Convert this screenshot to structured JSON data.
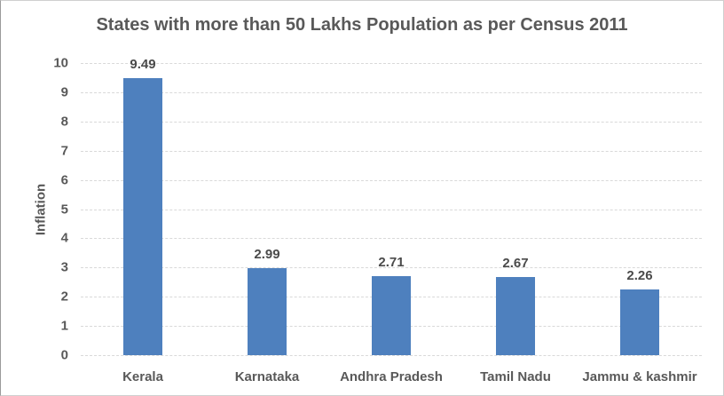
{
  "chart_data": {
    "type": "bar",
    "title": "States with more than 50 Lakhs Population as per Census 2011",
    "xlabel": "",
    "ylabel": "Inflation",
    "categories": [
      "Kerala",
      "Karnataka",
      "Andhra Pradesh",
      "Tamil Nadu",
      "Jammu & kashmir"
    ],
    "values": [
      9.49,
      2.99,
      2.71,
      2.67,
      2.26
    ],
    "data_labels": [
      "9.49",
      "2.99",
      "2.71",
      "2.67",
      "2.26"
    ],
    "ylim": [
      0,
      10
    ],
    "ytick_step": 1,
    "grid": "horizontal-dashed",
    "legend": "none",
    "colors": {
      "bar": "#4E80BE",
      "title_text": "#595959",
      "axis_text": "#595959",
      "data_label_text": "#4A4A4A",
      "gridline": "#D9D9D9",
      "background": "#FFFFFF",
      "border": "#CFCFCF"
    }
  }
}
